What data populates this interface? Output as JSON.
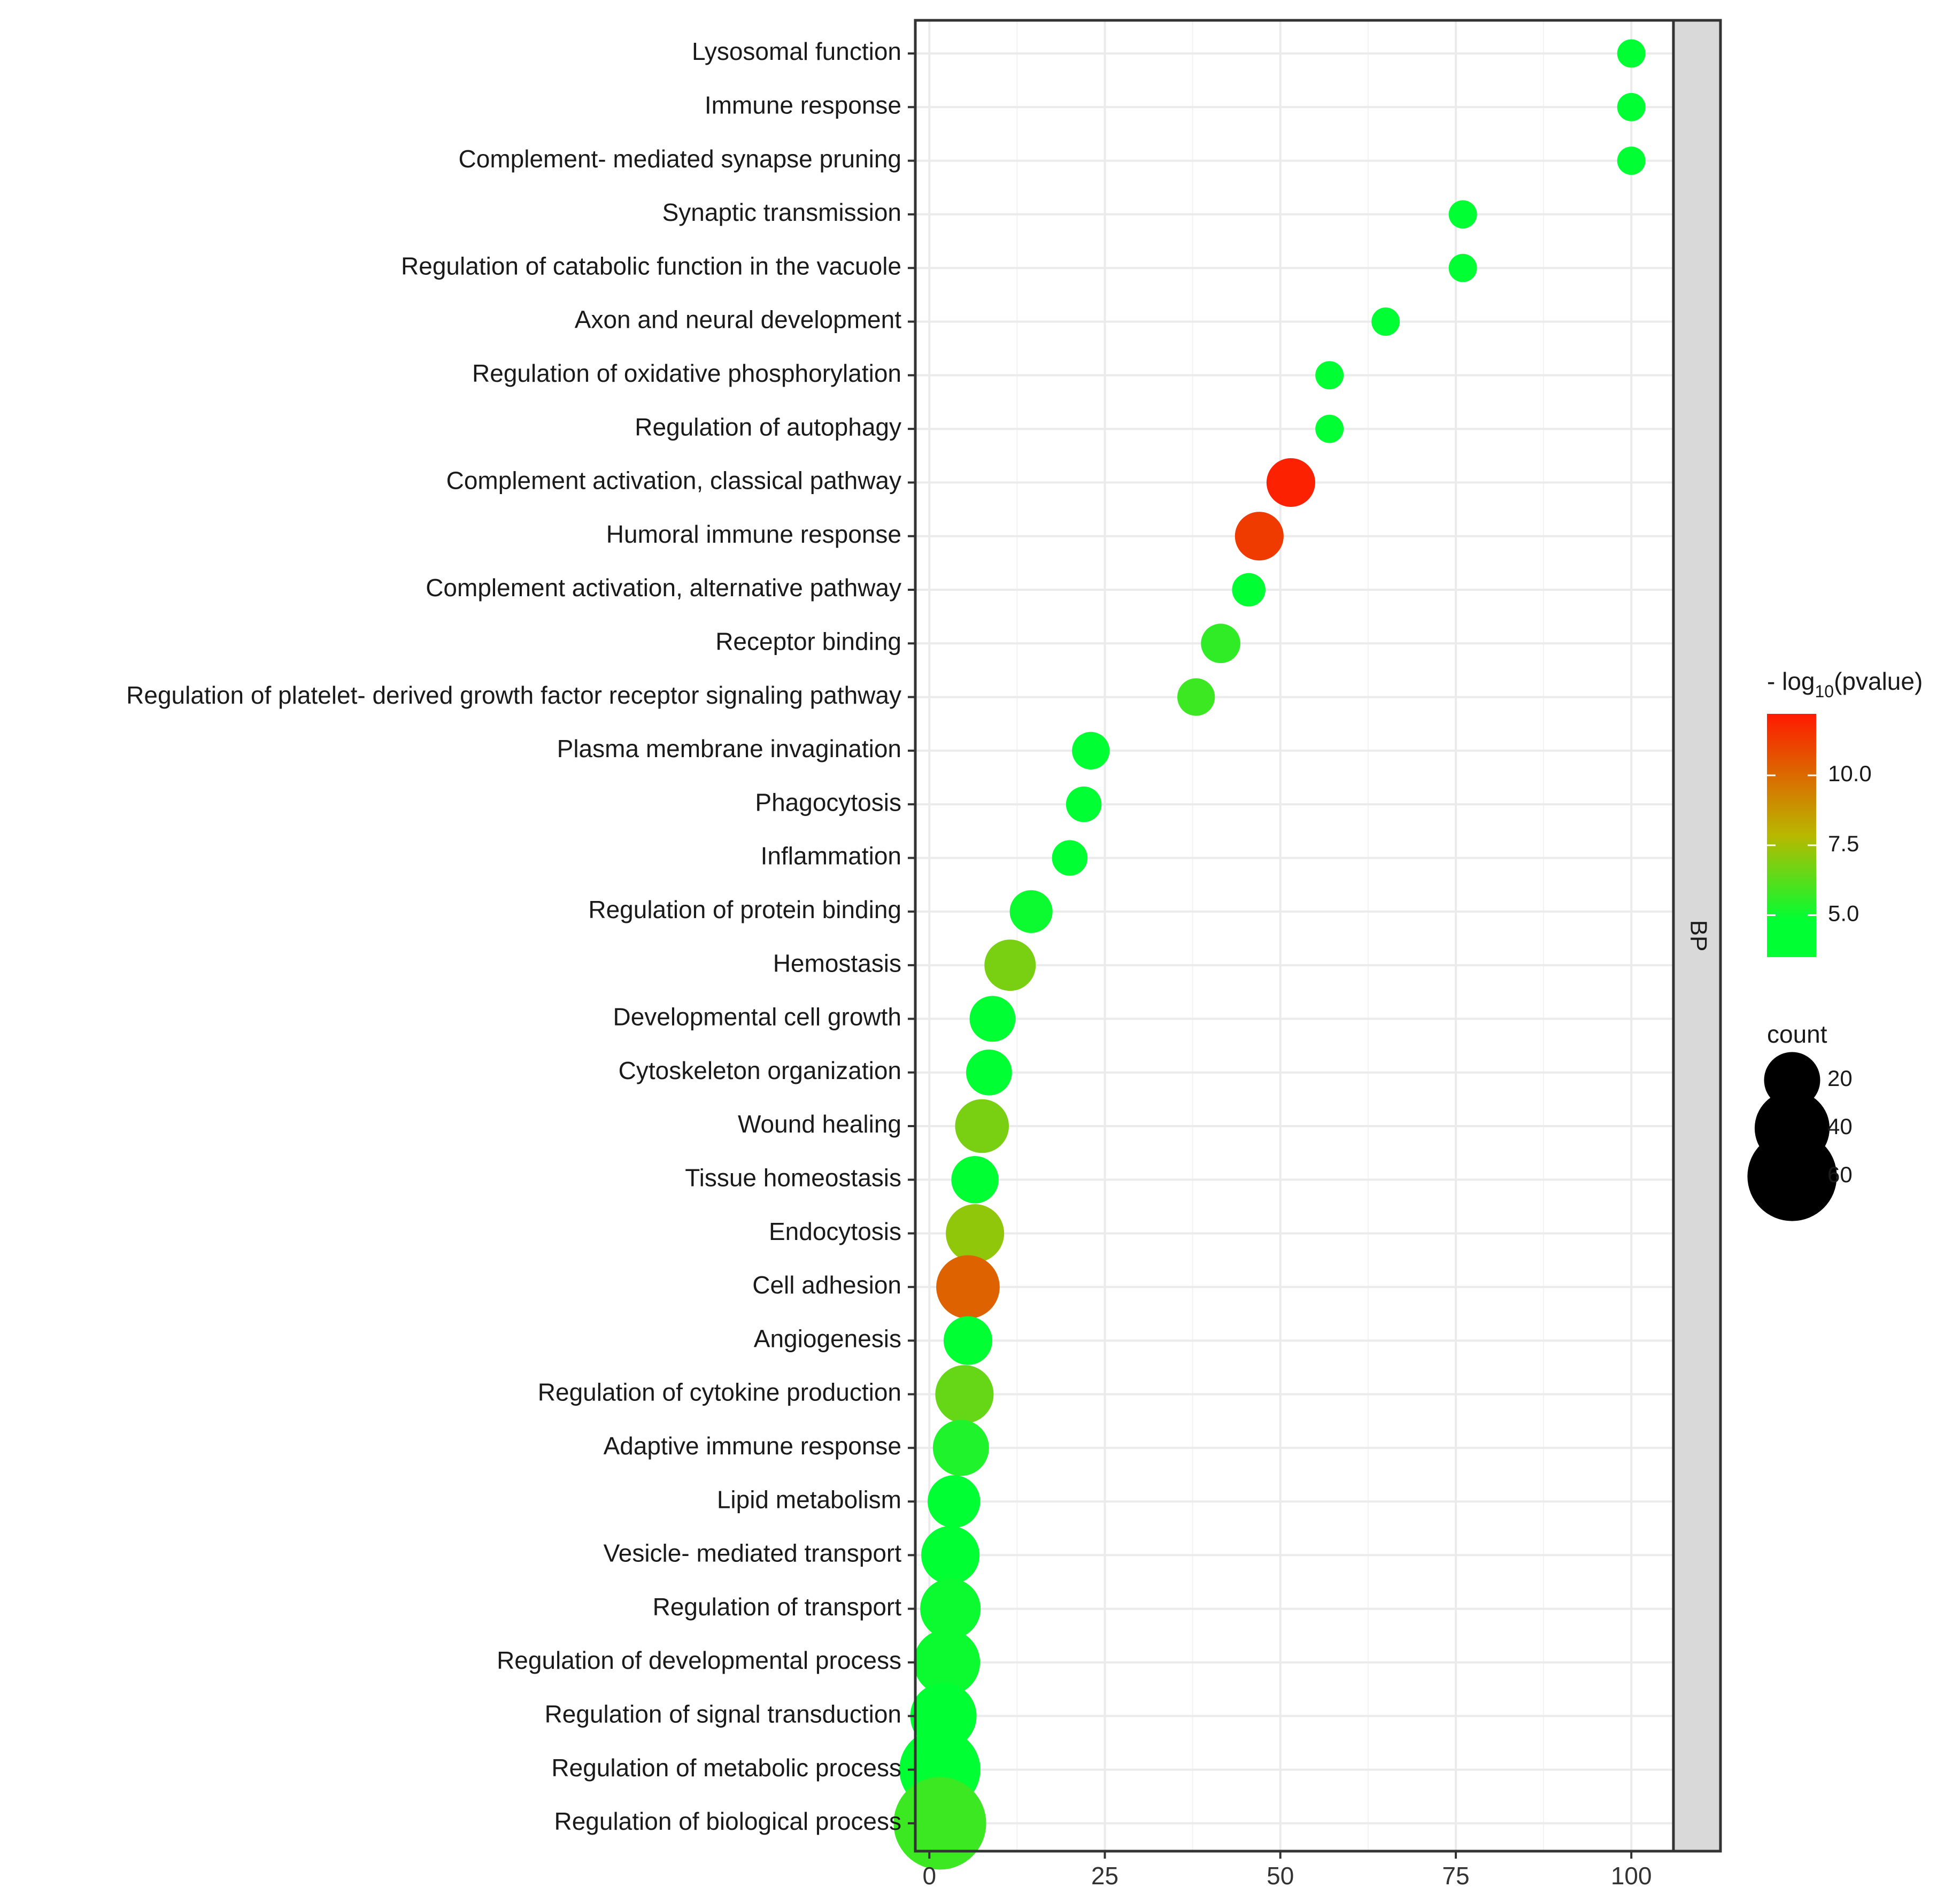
{
  "chart_data": {
    "type": "scatter",
    "subtype": "bubble",
    "facet_label": "BP",
    "x_ticks": [
      "0",
      "25",
      "50",
      "75",
      "100"
    ],
    "xlim": [
      -2,
      106
    ],
    "xlabel": "",
    "ylabel": "",
    "grid": true,
    "points": [
      {
        "term": "Lysosomal function",
        "x": 100,
        "count": 3,
        "neg_log10_p": 4.0
      },
      {
        "term": "Immune response",
        "x": 100,
        "count": 3,
        "neg_log10_p": 4.0
      },
      {
        "term": "Complement- mediated synapse pruning",
        "x": 100,
        "count": 3,
        "neg_log10_p": 4.0
      },
      {
        "term": "Synaptic transmission",
        "x": 76,
        "count": 3,
        "neg_log10_p": 4.0
      },
      {
        "term": "Regulation of catabolic function in the vacuole",
        "x": 76,
        "count": 3,
        "neg_log10_p": 4.0
      },
      {
        "term": "Axon and neural development",
        "x": 65,
        "count": 3,
        "neg_log10_p": 4.1
      },
      {
        "term": "Regulation of oxidative phosphorylation",
        "x": 57,
        "count": 3,
        "neg_log10_p": 4.1
      },
      {
        "term": "Regulation of autophagy",
        "x": 57,
        "count": 3,
        "neg_log10_p": 4.1
      },
      {
        "term": "Complement activation, classical pathway",
        "x": 51.5,
        "count": 14,
        "neg_log10_p": 12.0
      },
      {
        "term": "Humoral immune response",
        "x": 47,
        "count": 14,
        "neg_log10_p": 11.3
      },
      {
        "term": "Complement activation, alternative pathway",
        "x": 45.5,
        "count": 5,
        "neg_log10_p": 4.5
      },
      {
        "term": "Receptor binding",
        "x": 41.5,
        "count": 8,
        "neg_log10_p": 5.6
      },
      {
        "term": "Regulation of platelet- derived growth factor receptor signaling pathway",
        "x": 38,
        "count": 7,
        "neg_log10_p": 5.8
      },
      {
        "term": "Plasma membrane invagination",
        "x": 23,
        "count": 7,
        "neg_log10_p": 4.8
      },
      {
        "term": "Phagocytosis",
        "x": 22,
        "count": 6,
        "neg_log10_p": 4.3
      },
      {
        "term": "Inflammation",
        "x": 20,
        "count": 6,
        "neg_log10_p": 4.2
      },
      {
        "term": "Regulation of protein binding",
        "x": 14.5,
        "count": 10,
        "neg_log10_p": 5.0
      },
      {
        "term": "Hemostasis",
        "x": 11.5,
        "count": 16,
        "neg_log10_p": 6.8
      },
      {
        "term": "Developmental cell growth",
        "x": 9,
        "count": 12,
        "neg_log10_p": 4.3
      },
      {
        "term": "Cytoskeleton organization",
        "x": 8.5,
        "count": 12,
        "neg_log10_p": 4.2
      },
      {
        "term": "Wound healing",
        "x": 7.5,
        "count": 18,
        "neg_log10_p": 6.8
      },
      {
        "term": "Tissue homeostasis",
        "x": 6.5,
        "count": 13,
        "neg_log10_p": 4.3
      },
      {
        "term": "Endocytosis",
        "x": 6.5,
        "count": 22,
        "neg_log10_p": 7.2
      },
      {
        "term": "Cell adhesion",
        "x": 5.5,
        "count": 27,
        "neg_log10_p": 10.2
      },
      {
        "term": "Angiogenesis",
        "x": 5.5,
        "count": 14,
        "neg_log10_p": 4.3
      },
      {
        "term": "Regulation of cytokine production",
        "x": 5,
        "count": 22,
        "neg_log10_p": 6.5
      },
      {
        "term": "Adaptive immune response",
        "x": 4.5,
        "count": 20,
        "neg_log10_p": 5.3
      },
      {
        "term": "Lipid metabolism",
        "x": 3.5,
        "count": 17,
        "neg_log10_p": 4.5
      },
      {
        "term": "Vesicle- mediated transport",
        "x": 3,
        "count": 22,
        "neg_log10_p": 4.5
      },
      {
        "term": "Regulation of transport",
        "x": 3,
        "count": 24,
        "neg_log10_p": 5.0
      },
      {
        "term": "Regulation of developmental process",
        "x": 2.5,
        "count": 30,
        "neg_log10_p": 5.0
      },
      {
        "term": "Regulation of signal transduction",
        "x": 2,
        "count": 30,
        "neg_log10_p": 4.4
      },
      {
        "term": "Regulation of metabolic process",
        "x": 1.5,
        "count": 48,
        "neg_log10_p": 4.1
      },
      {
        "term": "Regulation of biological process",
        "x": 1.5,
        "count": 65,
        "neg_log10_p": 5.8
      }
    ],
    "color_legend": {
      "title_prefix": "- log",
      "title_subscript": "10",
      "title_suffix": "(pvalue)",
      "min": 3.5,
      "max": 12.2,
      "ticks": [
        "10.0",
        "7.5",
        "5.0"
      ],
      "tick_values": [
        10.0,
        7.5,
        5.0
      ],
      "low_color": "#00ff33",
      "mid_color": "#b8b800",
      "high_color": "#ff1a00"
    },
    "size_legend": {
      "title": "count",
      "entries": [
        {
          "label": "20",
          "value": 20
        },
        {
          "label": "40",
          "value": 40
        },
        {
          "label": "60",
          "value": 60
        }
      ]
    }
  }
}
